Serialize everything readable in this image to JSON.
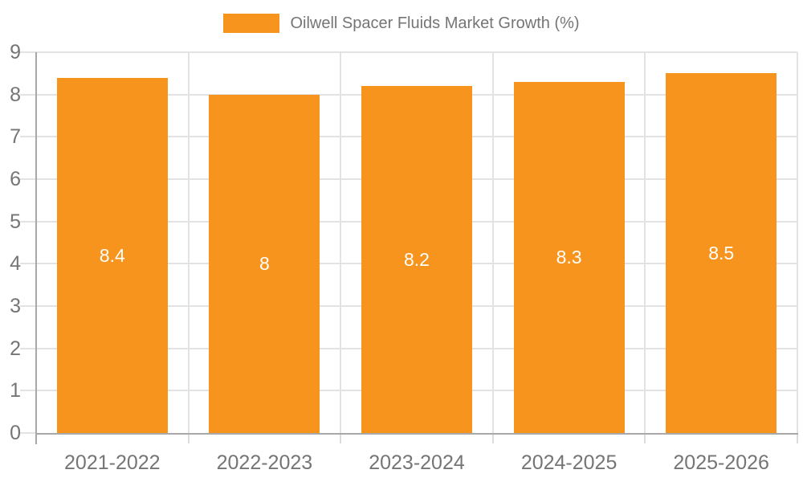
{
  "chart_data": {
    "type": "bar",
    "title": "Oilwell Spacer Fluids Market Growth (%)",
    "legend": {
      "label": "Oilwell Spacer Fluids Market Growth (%)",
      "position": "top-center"
    },
    "categories": [
      "2021-2022",
      "2022-2023",
      "2023-2024",
      "2024-2025",
      "2025-2026"
    ],
    "series": [
      {
        "name": "Oilwell Spacer Fluids Market Growth (%)",
        "values": [
          8.4,
          8,
          8.2,
          8.3,
          8.5
        ]
      }
    ],
    "value_labels": [
      "8.4",
      "8",
      "8.2",
      "8.3",
      "8.5"
    ],
    "xlabel": "",
    "ylabel": "",
    "ylim": [
      0,
      9
    ],
    "yticks": [
      0,
      1,
      2,
      3,
      4,
      5,
      6,
      7,
      8,
      9
    ],
    "grid": true,
    "colors": {
      "bar": "#F7941E",
      "bar_label": "#FFFFFF",
      "axis": "#A8A8A8",
      "gridline": "#E3E3E3",
      "tick_text": "#757575",
      "legend_text": "#757575",
      "background": "#FFFFFF"
    }
  }
}
